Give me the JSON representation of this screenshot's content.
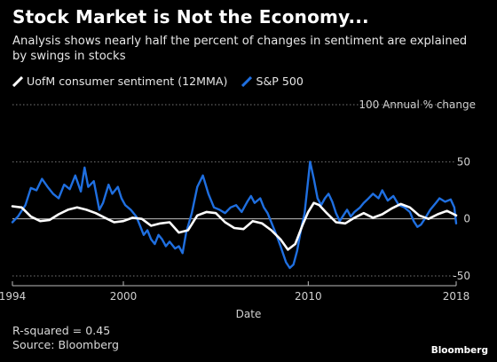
{
  "title": "Stock Market is Not the Economy...",
  "subtitle": "Analysis shows nearly half the percent of changes in sentiment are explained by swings in stocks",
  "footnote": {
    "r_squared": "R-squared = 0.45",
    "source": "Source: Bloomberg"
  },
  "brand": "Bloomberg",
  "chart_data": {
    "type": "line",
    "xlabel": "Date",
    "ylabel": "Annual % change",
    "xlim": [
      1994,
      2018
    ],
    "ylim": [
      -50,
      100
    ],
    "x_ticks": [
      1994,
      2000,
      2010,
      2018
    ],
    "y_ticks": [
      -50,
      0,
      50,
      100
    ],
    "y_tick_labels": [
      "-50",
      "0",
      "50",
      "100 Annual % change"
    ],
    "grid": "dotted horizontal",
    "legend": "top-left",
    "series": [
      {
        "name": "UofM consumer sentiment (12MMA)",
        "color": "#ffffff",
        "points": [
          [
            1994.0,
            11
          ],
          [
            1994.5,
            10
          ],
          [
            1995.0,
            2
          ],
          [
            1995.5,
            -2
          ],
          [
            1996.0,
            -1
          ],
          [
            1996.5,
            4
          ],
          [
            1997.0,
            8
          ],
          [
            1997.5,
            10
          ],
          [
            1998.0,
            8
          ],
          [
            1998.5,
            5
          ],
          [
            1999.0,
            1
          ],
          [
            1999.5,
            -3
          ],
          [
            2000.0,
            -2
          ],
          [
            2000.5,
            1
          ],
          [
            2001.0,
            0
          ],
          [
            2001.5,
            -6
          ],
          [
            2002.0,
            -4
          ],
          [
            2002.5,
            -3
          ],
          [
            2003.0,
            -12
          ],
          [
            2003.5,
            -10
          ],
          [
            2004.0,
            3
          ],
          [
            2004.5,
            6
          ],
          [
            2005.0,
            5
          ],
          [
            2005.5,
            -3
          ],
          [
            2006.0,
            -8
          ],
          [
            2006.5,
            -9
          ],
          [
            2007.0,
            -2
          ],
          [
            2007.5,
            -4
          ],
          [
            2008.0,
            -10
          ],
          [
            2008.5,
            -18
          ],
          [
            2008.9,
            -27
          ],
          [
            2009.3,
            -22
          ],
          [
            2009.7,
            -5
          ],
          [
            2010.0,
            6
          ],
          [
            2010.3,
            14
          ],
          [
            2010.6,
            12
          ],
          [
            2011.0,
            5
          ],
          [
            2011.5,
            -3
          ],
          [
            2012.0,
            -4
          ],
          [
            2012.5,
            1
          ],
          [
            2013.0,
            5
          ],
          [
            2013.5,
            1
          ],
          [
            2014.0,
            4
          ],
          [
            2014.5,
            9
          ],
          [
            2015.0,
            13
          ],
          [
            2015.5,
            10
          ],
          [
            2016.0,
            3
          ],
          [
            2016.5,
            0
          ],
          [
            2017.0,
            4
          ],
          [
            2017.5,
            7
          ],
          [
            2018.0,
            3
          ]
        ]
      },
      {
        "name": "S&P 500",
        "color": "#1f6fe0",
        "points": [
          [
            1994.0,
            -3
          ],
          [
            1994.3,
            2
          ],
          [
            1994.7,
            12
          ],
          [
            1995.0,
            27
          ],
          [
            1995.3,
            25
          ],
          [
            1995.6,
            35
          ],
          [
            1995.9,
            28
          ],
          [
            1996.2,
            22
          ],
          [
            1996.5,
            18
          ],
          [
            1996.8,
            30
          ],
          [
            1997.1,
            26
          ],
          [
            1997.4,
            38
          ],
          [
            1997.7,
            24
          ],
          [
            1997.9,
            45
          ],
          [
            1998.1,
            28
          ],
          [
            1998.4,
            33
          ],
          [
            1998.7,
            8
          ],
          [
            1998.9,
            14
          ],
          [
            1999.2,
            30
          ],
          [
            1999.4,
            22
          ],
          [
            1999.7,
            28
          ],
          [
            1999.9,
            18
          ],
          [
            2000.1,
            12
          ],
          [
            2000.4,
            8
          ],
          [
            2000.7,
            2
          ],
          [
            2000.9,
            -6
          ],
          [
            2001.1,
            -14
          ],
          [
            2001.3,
            -10
          ],
          [
            2001.5,
            -18
          ],
          [
            2001.7,
            -22
          ],
          [
            2001.9,
            -14
          ],
          [
            2002.1,
            -18
          ],
          [
            2002.3,
            -24
          ],
          [
            2002.5,
            -20
          ],
          [
            2002.8,
            -26
          ],
          [
            2003.0,
            -24
          ],
          [
            2003.2,
            -30
          ],
          [
            2003.4,
            -12
          ],
          [
            2003.7,
            5
          ],
          [
            2004.0,
            28
          ],
          [
            2004.3,
            38
          ],
          [
            2004.6,
            22
          ],
          [
            2004.9,
            10
          ],
          [
            2005.2,
            8
          ],
          [
            2005.5,
            5
          ],
          [
            2005.8,
            10
          ],
          [
            2006.1,
            12
          ],
          [
            2006.4,
            6
          ],
          [
            2006.7,
            15
          ],
          [
            2006.9,
            20
          ],
          [
            2007.1,
            14
          ],
          [
            2007.4,
            18
          ],
          [
            2007.6,
            10
          ],
          [
            2007.8,
            5
          ],
          [
            2008.0,
            -3
          ],
          [
            2008.3,
            -15
          ],
          [
            2008.5,
            -24
          ],
          [
            2008.8,
            -38
          ],
          [
            2009.0,
            -43
          ],
          [
            2009.2,
            -40
          ],
          [
            2009.4,
            -28
          ],
          [
            2009.6,
            -10
          ],
          [
            2009.8,
            5
          ],
          [
            2009.9,
            20
          ],
          [
            2010.1,
            50
          ],
          [
            2010.3,
            35
          ],
          [
            2010.5,
            18
          ],
          [
            2010.7,
            12
          ],
          [
            2010.9,
            18
          ],
          [
            2011.1,
            22
          ],
          [
            2011.3,
            15
          ],
          [
            2011.5,
            5
          ],
          [
            2011.7,
            -2
          ],
          [
            2011.9,
            3
          ],
          [
            2012.1,
            8
          ],
          [
            2012.3,
            2
          ],
          [
            2012.5,
            6
          ],
          [
            2012.8,
            10
          ],
          [
            2013.0,
            14
          ],
          [
            2013.2,
            17
          ],
          [
            2013.5,
            22
          ],
          [
            2013.8,
            18
          ],
          [
            2014.0,
            25
          ],
          [
            2014.3,
            16
          ],
          [
            2014.6,
            20
          ],
          [
            2014.9,
            12
          ],
          [
            2015.2,
            10
          ],
          [
            2015.5,
            6
          ],
          [
            2015.7,
            -2
          ],
          [
            2015.9,
            -7
          ],
          [
            2016.1,
            -5
          ],
          [
            2016.3,
            0
          ],
          [
            2016.6,
            8
          ],
          [
            2016.9,
            14
          ],
          [
            2017.1,
            18
          ],
          [
            2017.4,
            15
          ],
          [
            2017.7,
            17
          ],
          [
            2017.9,
            10
          ],
          [
            2018.0,
            -4
          ]
        ]
      }
    ]
  }
}
